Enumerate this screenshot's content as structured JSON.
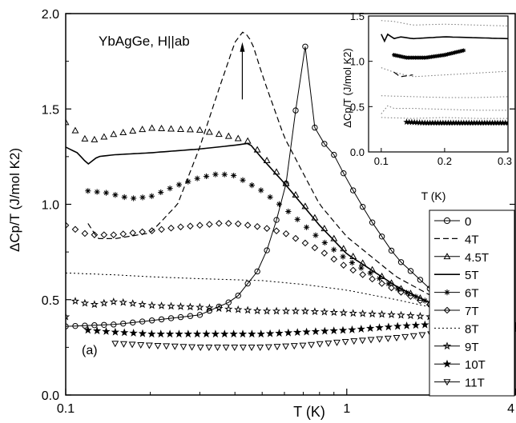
{
  "figure": {
    "panel_label": "(a)",
    "annotation": "YbAgGe, H||ab"
  },
  "chart_data": [
    {
      "type": "line",
      "title": "",
      "xlabel": "T (K)",
      "ylabel": "ΔCp/T (J/mol K2)",
      "xscale": "log",
      "xlim": [
        0.1,
        4
      ],
      "ylim": [
        0.0,
        2.0
      ],
      "xticks": [
        0.1,
        1,
        4
      ],
      "xticklabels": [
        "0.1",
        "1",
        "4"
      ],
      "yticks": [
        0.0,
        0.5,
        1.0,
        1.5,
        2.0
      ],
      "yticklabels": [
        "0.0",
        "0.5",
        "1.0",
        "1.5",
        "2.0"
      ],
      "grid": false,
      "legend_position": "right",
      "annotations": [
        "YbAgGe, H||ab",
        "(a)",
        "arrow near 4T peak"
      ],
      "series": [
        {
          "name": "0",
          "marker": "circle",
          "style": "line+open-circle",
          "x": [
            0.1,
            0.15,
            0.2,
            0.3,
            0.4,
            0.5,
            0.6,
            0.65,
            0.68,
            0.7,
            0.72,
            0.75,
            0.8,
            0.85,
            0.9,
            1.0,
            1.2,
            1.5,
            2.0,
            2.5,
            3.0,
            4.0
          ],
          "y": [
            0.36,
            0.37,
            0.39,
            0.42,
            0.5,
            0.68,
            1.05,
            1.4,
            1.75,
            2.0,
            1.7,
            1.45,
            1.33,
            1.31,
            1.26,
            1.13,
            0.93,
            0.72,
            0.55,
            0.47,
            0.42,
            0.36
          ]
        },
        {
          "name": "4T",
          "marker": "none",
          "style": "dashed",
          "x": [
            0.12,
            0.13,
            0.15,
            0.2,
            0.25,
            0.3,
            0.35,
            0.4,
            0.43,
            0.46,
            0.5,
            0.6,
            0.8,
            1.0,
            1.5,
            2.0,
            3.0,
            4.0
          ],
          "y": [
            0.9,
            0.82,
            0.82,
            0.85,
            1.0,
            1.3,
            1.6,
            1.85,
            1.91,
            1.85,
            1.68,
            1.35,
            1.0,
            0.83,
            0.62,
            0.52,
            0.42,
            0.36
          ]
        },
        {
          "name": "4.5T",
          "marker": "triangle-up",
          "style": "open-triangle",
          "x": [
            0.1,
            0.12,
            0.15,
            0.2,
            0.3,
            0.4,
            0.45,
            0.5,
            0.6,
            0.8,
            1.0,
            1.5,
            2.0,
            3.0,
            4.0
          ],
          "y": [
            1.43,
            1.33,
            1.37,
            1.4,
            1.39,
            1.35,
            1.33,
            1.26,
            1.12,
            0.9,
            0.75,
            0.57,
            0.48,
            0.39,
            0.36
          ]
        },
        {
          "name": "5T",
          "marker": "none",
          "style": "solid",
          "x": [
            0.1,
            0.11,
            0.12,
            0.13,
            0.15,
            0.2,
            0.3,
            0.4,
            0.45,
            0.5,
            0.6,
            0.8,
            1.0,
            1.5,
            2.0,
            3.0,
            4.0
          ],
          "y": [
            1.3,
            1.27,
            1.21,
            1.25,
            1.26,
            1.27,
            1.29,
            1.31,
            1.32,
            1.24,
            1.11,
            0.89,
            0.74,
            0.57,
            0.48,
            0.39,
            0.36
          ]
        },
        {
          "name": "6T",
          "marker": "asterisk",
          "style": "asterisk",
          "x": [
            0.12,
            0.14,
            0.17,
            0.2,
            0.25,
            0.3,
            0.35,
            0.4,
            0.5,
            0.6,
            0.8,
            1.0,
            1.5,
            2.0,
            3.0,
            4.0
          ],
          "y": [
            1.07,
            1.06,
            1.03,
            1.04,
            1.1,
            1.14,
            1.16,
            1.15,
            1.07,
            0.98,
            0.82,
            0.71,
            0.56,
            0.48,
            0.4,
            0.36
          ]
        },
        {
          "name": "7T",
          "marker": "diamond",
          "style": "open-diamond",
          "x": [
            0.1,
            0.12,
            0.15,
            0.2,
            0.25,
            0.3,
            0.35,
            0.4,
            0.5,
            0.6,
            0.8,
            1.0,
            1.5,
            2.0,
            3.0,
            4.0
          ],
          "y": [
            0.89,
            0.84,
            0.84,
            0.86,
            0.88,
            0.89,
            0.9,
            0.9,
            0.88,
            0.85,
            0.76,
            0.67,
            0.55,
            0.47,
            0.4,
            0.36
          ]
        },
        {
          "name": "8T",
          "marker": "none",
          "style": "dotted",
          "x": [
            0.1,
            0.15,
            0.2,
            0.3,
            0.5,
            0.7,
            1.0,
            1.5,
            2.0,
            3.0,
            4.0
          ],
          "y": [
            0.64,
            0.63,
            0.62,
            0.61,
            0.6,
            0.58,
            0.55,
            0.5,
            0.46,
            0.4,
            0.36
          ]
        },
        {
          "name": "9T",
          "marker": "star-open",
          "style": "open-star",
          "x": [
            0.1,
            0.11,
            0.12,
            0.15,
            0.2,
            0.3,
            0.5,
            0.7,
            1.0,
            1.5,
            2.0,
            3.0,
            4.0
          ],
          "y": [
            0.41,
            0.51,
            0.47,
            0.49,
            0.47,
            0.46,
            0.44,
            0.44,
            0.43,
            0.42,
            0.41,
            0.38,
            0.36
          ]
        },
        {
          "name": "10T",
          "marker": "star-filled",
          "style": "filled-star",
          "x": [
            0.12,
            0.15,
            0.2,
            0.3,
            0.5,
            0.7,
            1.0,
            1.5,
            2.0,
            3.0,
            4.0
          ],
          "y": [
            0.34,
            0.33,
            0.32,
            0.32,
            0.32,
            0.33,
            0.34,
            0.36,
            0.37,
            0.37,
            0.36
          ]
        },
        {
          "name": "11T",
          "marker": "triangle-down",
          "style": "open-triangle-down",
          "x": [
            0.15,
            0.2,
            0.3,
            0.5,
            0.7,
            1.0,
            1.5,
            2.0,
            3.0,
            4.0
          ],
          "y": [
            0.27,
            0.26,
            0.25,
            0.25,
            0.26,
            0.28,
            0.3,
            0.32,
            0.35,
            0.35
          ]
        }
      ]
    },
    {
      "type": "line",
      "role": "inset",
      "title": "",
      "xlabel": "T (K)",
      "ylabel": "ΔCp/T (J/mol K2)",
      "xlim": [
        0.08,
        0.3
      ],
      "ylim": [
        0.0,
        1.5
      ],
      "xticks": [
        0.1,
        0.2,
        0.3
      ],
      "xticklabels": [
        "0.1",
        "0.2",
        "0.3"
      ],
      "yticks": [
        0.0,
        0.5,
        1.0,
        1.5
      ],
      "yticklabels": [
        "0.0",
        "0.5",
        "1.0",
        "1.5"
      ],
      "grid": false,
      "series": [
        {
          "x": [
            0.1,
            0.12,
            0.15,
            0.2,
            0.25,
            0.3
          ],
          "y": [
            1.45,
            1.44,
            1.4,
            1.41,
            1.4,
            1.39
          ],
          "style": "dotted-gray"
        },
        {
          "x": [
            0.1,
            0.105,
            0.11,
            0.12,
            0.13,
            0.15,
            0.2,
            0.25,
            0.3
          ],
          "y": [
            1.3,
            1.22,
            1.3,
            1.25,
            1.27,
            1.25,
            1.27,
            1.26,
            1.25
          ],
          "style": "solid"
        },
        {
          "x": [
            0.12,
            0.14,
            0.17,
            0.2,
            0.23
          ],
          "y": [
            1.07,
            1.04,
            1.04,
            1.07,
            1.12
          ],
          "style": "asterisk"
        },
        {
          "x": [
            0.1,
            0.12,
            0.15,
            0.2,
            0.25,
            0.3
          ],
          "y": [
            0.93,
            0.88,
            0.83,
            0.85,
            0.87,
            0.89
          ],
          "style": "dotted-gray"
        },
        {
          "x": [
            0.12,
            0.13,
            0.15
          ],
          "y": [
            0.88,
            0.83,
            0.85
          ],
          "style": "dashed"
        },
        {
          "x": [
            0.1,
            0.15,
            0.2,
            0.25,
            0.3
          ],
          "y": [
            0.62,
            0.61,
            0.6,
            0.6,
            0.61
          ],
          "style": "dotted-gray"
        },
        {
          "x": [
            0.1,
            0.11,
            0.12,
            0.15,
            0.2,
            0.25,
            0.3
          ],
          "y": [
            0.42,
            0.51,
            0.48,
            0.48,
            0.47,
            0.46,
            0.46
          ],
          "style": "dotted-gray"
        },
        {
          "x": [
            0.1,
            0.15,
            0.2,
            0.25,
            0.3
          ],
          "y": [
            0.38,
            0.37,
            0.38,
            0.37,
            0.37
          ],
          "style": "dotted-gray"
        },
        {
          "x": [
            0.14,
            0.17,
            0.2,
            0.23,
            0.26,
            0.3
          ],
          "y": [
            0.33,
            0.32,
            0.32,
            0.32,
            0.32,
            0.32
          ],
          "style": "filled-star"
        }
      ]
    }
  ]
}
